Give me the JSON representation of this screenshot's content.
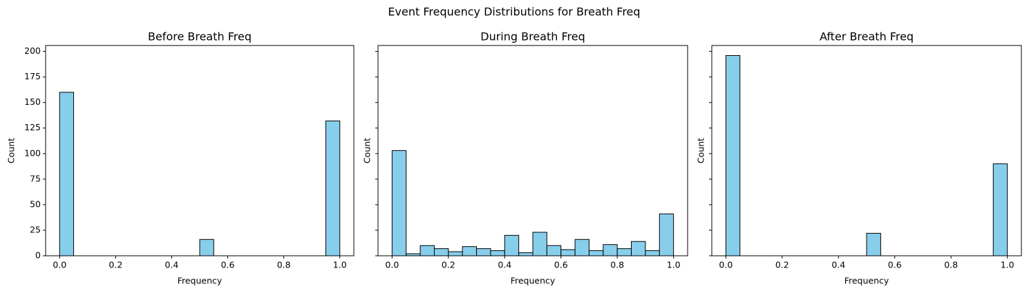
{
  "suptitle": "Event Frequency Distributions for Breath Freq",
  "chart_data": [
    {
      "type": "histogram",
      "title": "Before Breath Freq",
      "x_label": "Frequency",
      "y_label": "Count",
      "bins": [
        0,
        0.05,
        0.1,
        0.15,
        0.2,
        0.25,
        0.3,
        0.35,
        0.4,
        0.45,
        0.5,
        0.55,
        0.6,
        0.65,
        0.7,
        0.75,
        0.8,
        0.85,
        0.9,
        0.95,
        1
      ],
      "values": [
        160,
        0,
        0,
        0,
        0,
        0,
        0,
        0,
        0,
        0,
        16,
        0,
        0,
        0,
        0,
        0,
        0,
        0,
        0,
        132
      ],
      "color": "#87ceeb",
      "edge_color": "#000000",
      "xlim": [
        -0.05,
        1.05
      ],
      "xticks": [
        {
          "value": 0,
          "label": "0.0"
        },
        0.2,
        0.4,
        0.6,
        0.8,
        {
          "value": 1,
          "label": "1.0"
        }
      ],
      "ylim": [
        0,
        205.8
      ],
      "yticks": [
        0,
        25,
        50,
        75,
        100,
        125,
        150,
        175,
        200
      ],
      "show_ytick_labels": true
    },
    {
      "type": "histogram",
      "title": "During Breath Freq",
      "x_label": "Frequency",
      "y_label": "Count",
      "bins": [
        0,
        0.05,
        0.1,
        0.15,
        0.2,
        0.25,
        0.3,
        0.35,
        0.4,
        0.45,
        0.5,
        0.55,
        0.6,
        0.65,
        0.7,
        0.75,
        0.8,
        0.85,
        0.9,
        0.95,
        1
      ],
      "values": [
        103,
        2,
        10,
        7,
        4,
        9,
        7,
        5,
        20,
        3,
        23,
        10,
        6,
        16,
        5,
        11,
        7,
        14,
        5,
        41
      ],
      "color": "#87ceeb",
      "edge_color": "#000000",
      "xlim": [
        -0.05,
        1.05
      ],
      "xticks": [
        {
          "value": 0,
          "label": "0.0"
        },
        0.2,
        0.4,
        0.6,
        0.8,
        {
          "value": 1,
          "label": "1.0"
        }
      ],
      "ylim": [
        0,
        205.8
      ],
      "yticks": [
        0,
        25,
        50,
        75,
        100,
        125,
        150,
        175,
        200
      ],
      "show_ytick_labels": false
    },
    {
      "type": "histogram",
      "title": "After Breath Freq",
      "x_label": "Frequency",
      "y_label": "Count",
      "bins": [
        0,
        0.05,
        0.1,
        0.15,
        0.2,
        0.25,
        0.3,
        0.35,
        0.4,
        0.45,
        0.5,
        0.55,
        0.6,
        0.65,
        0.7,
        0.75,
        0.8,
        0.85,
        0.9,
        0.95,
        1
      ],
      "values": [
        196,
        0,
        0,
        0,
        0,
        0,
        0,
        0,
        0,
        0,
        22,
        0,
        0,
        0,
        0,
        0,
        0,
        0,
        0,
        90
      ],
      "color": "#87ceeb",
      "edge_color": "#000000",
      "xlim": [
        -0.05,
        1.05
      ],
      "xticks": [
        {
          "value": 0,
          "label": "0.0"
        },
        0.2,
        0.4,
        0.6,
        0.8,
        {
          "value": 1,
          "label": "1.0"
        }
      ],
      "ylim": [
        0,
        205.8
      ],
      "yticks": [
        0,
        25,
        50,
        75,
        100,
        125,
        150,
        175,
        200
      ],
      "show_ytick_labels": false
    }
  ]
}
